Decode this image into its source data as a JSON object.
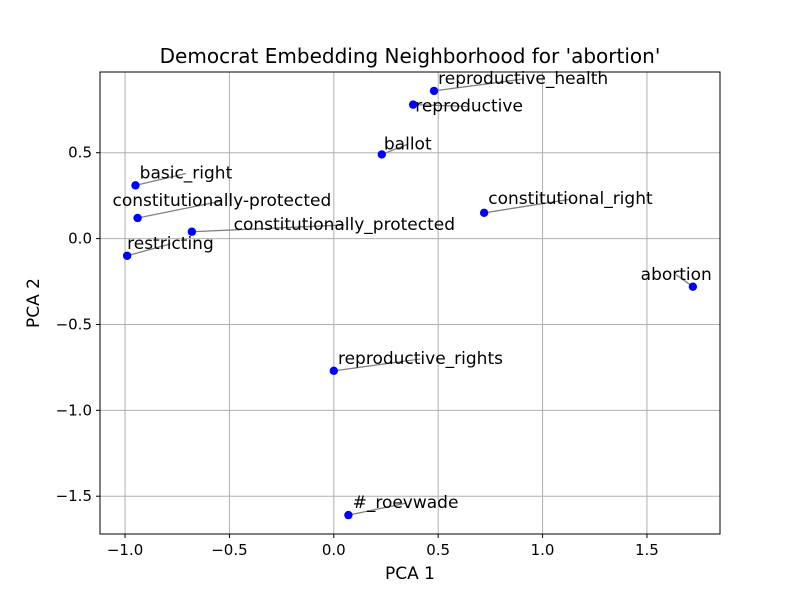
{
  "chart_data": {
    "type": "scatter",
    "title": "Democrat Embedding Neighborhood for 'abortion'",
    "xlabel": "PCA 1",
    "ylabel": "PCA 2",
    "xlim": [
      -1.12,
      1.85
    ],
    "ylim": [
      -1.72,
      0.97
    ],
    "xticks": [
      -1.0,
      -0.5,
      0.0,
      0.5,
      1.0,
      1.5
    ],
    "xtick_labels": [
      "−1.0",
      "−0.5",
      "0.0",
      "0.5",
      "1.0",
      "1.5"
    ],
    "yticks": [
      -1.5,
      -1.0,
      -0.5,
      0.0,
      0.5
    ],
    "ytick_labels": [
      "−1.5",
      "−1.0",
      "−0.5",
      "0.0",
      "0.5"
    ],
    "grid": true,
    "marker_color": "#0000ff",
    "leader_color": "#808080",
    "points": [
      {
        "label": "reproductive_health",
        "x": 0.48,
        "y": 0.86,
        "label_x": 0.5,
        "label_y": 0.9
      },
      {
        "label": "reproductive",
        "x": 0.38,
        "y": 0.78,
        "label_x": 0.39,
        "label_y": 0.74
      },
      {
        "label": "ballot",
        "x": 0.23,
        "y": 0.49,
        "label_x": 0.24,
        "label_y": 0.52
      },
      {
        "label": "basic_right",
        "x": -0.95,
        "y": 0.31,
        "label_x": -0.93,
        "label_y": 0.35
      },
      {
        "label": "constitutionally-protected",
        "x": -0.94,
        "y": 0.12,
        "label_x": -1.06,
        "label_y": 0.19
      },
      {
        "label": "constitutional_right",
        "x": 0.72,
        "y": 0.15,
        "label_x": 0.74,
        "label_y": 0.2
      },
      {
        "label": "constitutionally_protected",
        "x": -0.68,
        "y": 0.04,
        "label_x": -0.48,
        "label_y": 0.05
      },
      {
        "label": "restricting",
        "x": -0.99,
        "y": -0.1,
        "label_x": -0.99,
        "label_y": -0.06
      },
      {
        "label": "abortion",
        "x": 1.72,
        "y": -0.28,
        "label_x": 1.47,
        "label_y": -0.24
      },
      {
        "label": "reproductive_rights",
        "x": 0.0,
        "y": -0.77,
        "label_x": 0.02,
        "label_y": -0.73
      },
      {
        "label": "#_roevwade",
        "x": 0.07,
        "y": -1.61,
        "label_x": 0.09,
        "label_y": -1.57
      }
    ]
  }
}
